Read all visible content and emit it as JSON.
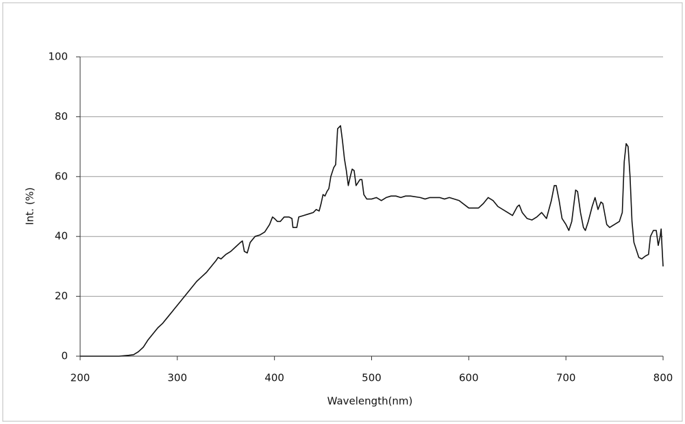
{
  "chart_data": {
    "type": "line",
    "x_label": "Wavelength(nm)",
    "y_label": "Int. (%)",
    "color": "#111111",
    "grid": true,
    "xlim": [
      200,
      800
    ],
    "xticks": [
      200,
      300,
      400,
      500,
      600,
      700,
      800
    ],
    "ylim": [
      0,
      100
    ],
    "yticks": [
      0,
      20,
      40,
      60,
      80,
      100
    ],
    "x": [
      200,
      240,
      250,
      255,
      260,
      265,
      270,
      275,
      280,
      285,
      290,
      295,
      300,
      305,
      310,
      315,
      320,
      325,
      330,
      335,
      340,
      342,
      345,
      350,
      355,
      360,
      365,
      367,
      369,
      372,
      375,
      380,
      385,
      390,
      395,
      398,
      400,
      403,
      406,
      410,
      415,
      418,
      419,
      423,
      425,
      430,
      435,
      440,
      443,
      446,
      448,
      450,
      452,
      454,
      456,
      458,
      461,
      463,
      465,
      468,
      470,
      472,
      474,
      476,
      478,
      480,
      482,
      484,
      486,
      488,
      490,
      492,
      495,
      500,
      505,
      510,
      515,
      520,
      525,
      530,
      535,
      540,
      550,
      555,
      560,
      570,
      575,
      580,
      590,
      600,
      610,
      615,
      620,
      625,
      630,
      640,
      645,
      650,
      652,
      655,
      660,
      665,
      670,
      675,
      680,
      685,
      688,
      690,
      693,
      696,
      700,
      703,
      706,
      710,
      712,
      715,
      718,
      720,
      723,
      727,
      730,
      733,
      736,
      738,
      742,
      745,
      750,
      755,
      758,
      760,
      762,
      764,
      766,
      768,
      770,
      775,
      778,
      782,
      785,
      787,
      790,
      793,
      795,
      797,
      798,
      799,
      800
    ],
    "values": [
      0,
      0,
      0.3,
      0.5,
      1.5,
      3,
      5.5,
      7.5,
      9.5,
      11,
      13,
      15,
      17,
      19,
      21,
      23,
      25,
      26.5,
      28,
      30,
      32,
      33,
      32.5,
      34,
      35,
      36.5,
      38,
      38.5,
      35,
      34.5,
      38,
      40,
      40.5,
      41.5,
      44,
      46.5,
      46,
      45,
      45,
      46.5,
      46.5,
      46,
      43,
      43,
      46.5,
      47,
      47.5,
      48,
      49,
      48.5,
      51,
      54,
      53.5,
      55,
      56,
      60,
      63,
      64,
      76,
      77,
      72,
      66,
      62,
      57,
      60,
      62.5,
      62,
      57,
      58,
      59,
      59,
      54,
      52.5,
      52.5,
      53,
      52,
      53,
      53.5,
      53.5,
      53,
      53.5,
      53.5,
      53,
      52.5,
      53,
      53,
      52.5,
      53,
      52,
      49.5,
      49.5,
      51,
      53,
      52,
      50,
      48,
      47,
      50,
      50.5,
      48,
      46,
      45.5,
      46.5,
      48,
      46,
      52,
      57,
      57,
      52,
      46,
      44,
      42,
      45,
      55.5,
      55,
      48,
      43,
      42,
      45,
      50,
      53,
      49,
      51.5,
      51,
      44,
      43,
      44,
      45,
      48,
      65,
      71,
      70,
      60,
      45,
      38,
      33,
      32.5,
      33.5,
      34,
      40,
      42,
      42,
      37,
      40,
      42.5,
      36,
      30
    ]
  }
}
